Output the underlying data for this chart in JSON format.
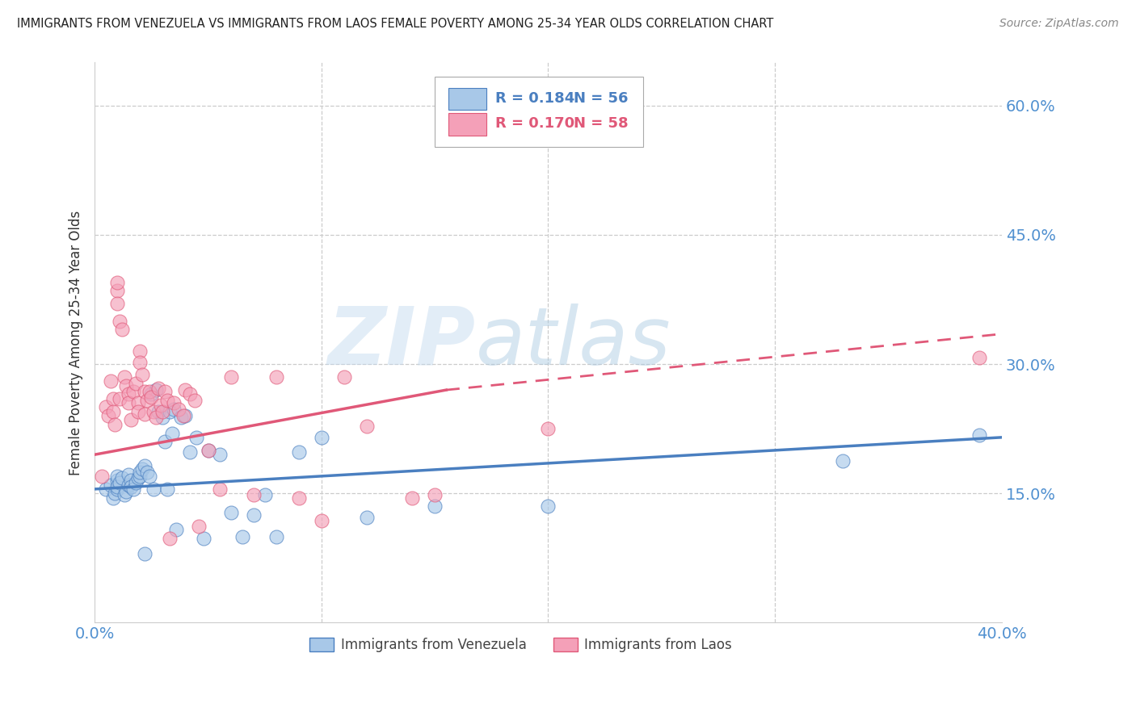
{
  "title": "IMMIGRANTS FROM VENEZUELA VS IMMIGRANTS FROM LAOS FEMALE POVERTY AMONG 25-34 YEAR OLDS CORRELATION CHART",
  "source": "Source: ZipAtlas.com",
  "ylabel": "Female Poverty Among 25-34 Year Olds",
  "xlim": [
    0.0,
    0.4
  ],
  "ylim": [
    0.0,
    0.65
  ],
  "yticks": [
    0.15,
    0.3,
    0.45,
    0.6
  ],
  "ytick_labels": [
    "15.0%",
    "30.0%",
    "45.0%",
    "60.0%"
  ],
  "xticks": [
    0.0,
    0.1,
    0.2,
    0.3,
    0.4
  ],
  "xtick_labels": [
    "0.0%",
    "",
    "",
    "",
    "40.0%"
  ],
  "legend_r_venezuela": "R = 0.184",
  "legend_n_venezuela": "N = 56",
  "legend_r_laos": "R = 0.170",
  "legend_n_laos": "N = 58",
  "color_venezuela": "#a8c8e8",
  "color_laos": "#f4a0b8",
  "color_venezuela_line": "#4a7fc0",
  "color_laos_line": "#e05878",
  "color_axis_labels": "#5090d0",
  "watermark_color": "#d0e4f4",
  "venezuela_x": [
    0.005,
    0.007,
    0.008,
    0.009,
    0.01,
    0.01,
    0.01,
    0.01,
    0.011,
    0.012,
    0.013,
    0.014,
    0.015,
    0.015,
    0.016,
    0.016,
    0.017,
    0.018,
    0.019,
    0.02,
    0.02,
    0.021,
    0.022,
    0.022,
    0.023,
    0.024,
    0.025,
    0.026,
    0.027,
    0.028,
    0.03,
    0.031,
    0.032,
    0.033,
    0.034,
    0.035,
    0.036,
    0.038,
    0.04,
    0.042,
    0.045,
    0.048,
    0.05,
    0.055,
    0.06,
    0.065,
    0.07,
    0.075,
    0.08,
    0.09,
    0.1,
    0.12,
    0.15,
    0.2,
    0.33,
    0.39
  ],
  "venezuela_y": [
    0.155,
    0.16,
    0.145,
    0.15,
    0.155,
    0.165,
    0.17,
    0.158,
    0.162,
    0.168,
    0.148,
    0.152,
    0.16,
    0.172,
    0.165,
    0.158,
    0.155,
    0.162,
    0.168,
    0.17,
    0.175,
    0.178,
    0.08,
    0.182,
    0.175,
    0.17,
    0.265,
    0.155,
    0.27,
    0.245,
    0.238,
    0.21,
    0.155,
    0.245,
    0.22,
    0.248,
    0.108,
    0.238,
    0.24,
    0.198,
    0.215,
    0.098,
    0.2,
    0.195,
    0.128,
    0.1,
    0.125,
    0.148,
    0.1,
    0.198,
    0.215,
    0.122,
    0.135,
    0.135,
    0.188,
    0.218
  ],
  "laos_x": [
    0.003,
    0.005,
    0.006,
    0.007,
    0.008,
    0.008,
    0.009,
    0.01,
    0.01,
    0.01,
    0.011,
    0.011,
    0.012,
    0.013,
    0.014,
    0.015,
    0.015,
    0.016,
    0.017,
    0.018,
    0.019,
    0.019,
    0.02,
    0.02,
    0.021,
    0.022,
    0.022,
    0.023,
    0.024,
    0.025,
    0.026,
    0.027,
    0.028,
    0.029,
    0.03,
    0.031,
    0.032,
    0.033,
    0.035,
    0.037,
    0.039,
    0.04,
    0.042,
    0.044,
    0.046,
    0.05,
    0.055,
    0.06,
    0.07,
    0.08,
    0.09,
    0.1,
    0.11,
    0.12,
    0.14,
    0.15,
    0.2,
    0.39
  ],
  "laos_y": [
    0.17,
    0.25,
    0.24,
    0.28,
    0.26,
    0.245,
    0.23,
    0.385,
    0.395,
    0.37,
    0.26,
    0.35,
    0.34,
    0.285,
    0.275,
    0.265,
    0.255,
    0.235,
    0.268,
    0.278,
    0.255,
    0.245,
    0.315,
    0.302,
    0.288,
    0.268,
    0.242,
    0.258,
    0.268,
    0.262,
    0.245,
    0.238,
    0.272,
    0.252,
    0.245,
    0.268,
    0.258,
    0.098,
    0.255,
    0.248,
    0.24,
    0.27,
    0.265,
    0.258,
    0.112,
    0.2,
    0.155,
    0.285,
    0.148,
    0.285,
    0.145,
    0.118,
    0.285,
    0.228,
    0.145,
    0.148,
    0.225,
    0.308
  ]
}
